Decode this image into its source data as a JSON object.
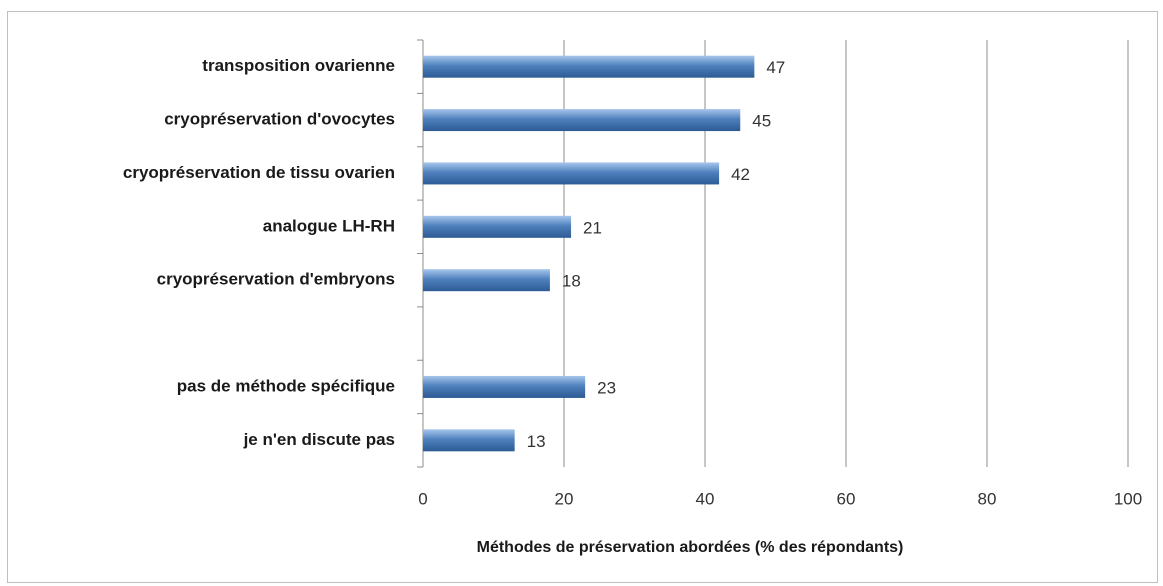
{
  "chart_data": {
    "type": "bar",
    "orientation": "horizontal",
    "x_label": "Méthodes de préservation abordées (% des répondants)",
    "categories": [
      "transposition ovarienne",
      "cryopréservation d'ovocytes",
      "cryopréservation de tissu ovarien",
      "analogue LH-RH",
      "cryopréservation d'embryons",
      null,
      "pas de méthode spécifique",
      "je n'en discute pas"
    ],
    "values": [
      47,
      45,
      42,
      21,
      18,
      null,
      23,
      13
    ],
    "color": "#4f81bd",
    "xlim": [
      0,
      100
    ],
    "xticks": [
      0,
      20,
      40,
      60,
      80,
      100
    ],
    "grid": true
  }
}
